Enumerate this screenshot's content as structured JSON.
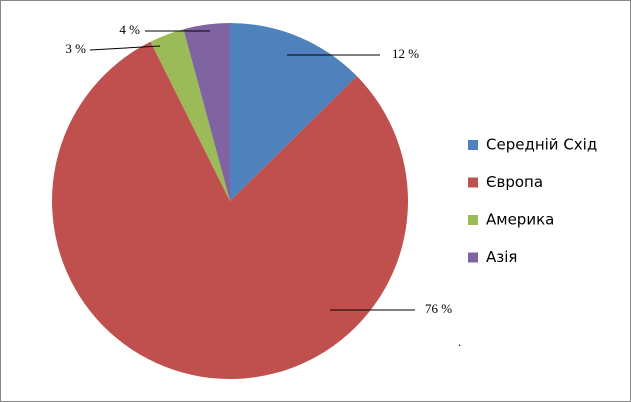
{
  "chart_data": {
    "type": "pie",
    "categories": [
      "Середній Схід",
      "Європа",
      "Америка",
      "Азія"
    ],
    "values": [
      12,
      76,
      3,
      4
    ],
    "value_labels": [
      "12 %",
      "76 %",
      "3 %",
      "4 %"
    ],
    "colors": [
      "#4f81bd",
      "#c0504d",
      "#9bbb59",
      "#8064a2"
    ],
    "legend": "right"
  }
}
